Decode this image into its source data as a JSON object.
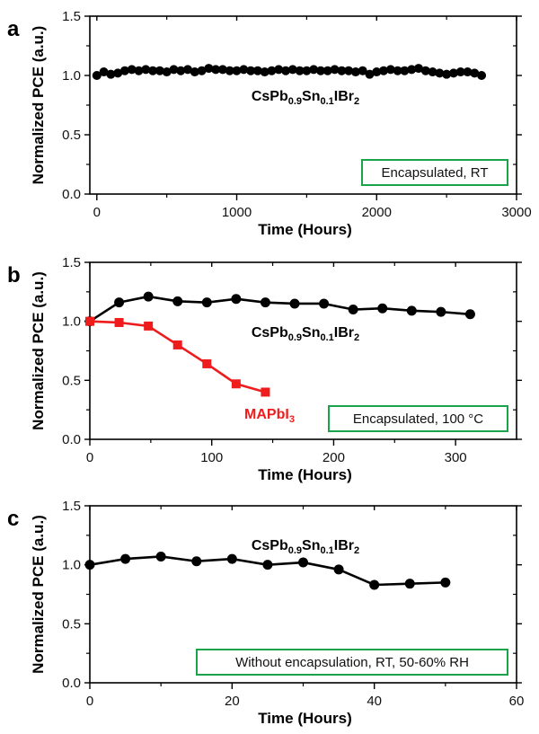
{
  "colors": {
    "black_series": "#000000",
    "red_series": "#ee1c1c",
    "legend_box": "#1aa34a"
  },
  "chart_data": [
    {
      "panel": "a",
      "type": "line",
      "xlabel": "Time (Hours)",
      "ylabel": "Normalized PCE (a.u.)",
      "xlim": [
        -50,
        3000
      ],
      "ylim": [
        0.0,
        1.5
      ],
      "xticks": [
        0,
        1000,
        2000,
        3000
      ],
      "xtick_labels": [
        "0",
        "1000",
        "2000",
        "3000"
      ],
      "x_minor_ticks": [
        500,
        1500,
        2500
      ],
      "yticks": [
        0.0,
        0.5,
        1.0,
        1.5
      ],
      "ytick_labels": [
        "0.0",
        "0.5",
        "1.0",
        "1.5"
      ],
      "y_minor_ticks": [
        0.25,
        0.75,
        1.25
      ],
      "legend_box": "Encapsulated, RT",
      "legend_placement": "bottom-right",
      "series": [
        {
          "name": "CsPb0.9Sn0.1IBr2",
          "label_parts": [
            {
              "t": "CsPb",
              "sub": false
            },
            {
              "t": "0.9",
              "sub": true
            },
            {
              "t": "Sn",
              "sub": false
            },
            {
              "t": "0.1",
              "sub": true
            },
            {
              "t": "IBr",
              "sub": false
            },
            {
              "t": "2",
              "sub": true
            }
          ],
          "color": "#000000",
          "marker": "circle",
          "x": [
            0,
            50,
            100,
            150,
            200,
            250,
            300,
            350,
            400,
            450,
            500,
            550,
            600,
            650,
            700,
            750,
            800,
            850,
            900,
            950,
            1000,
            1050,
            1100,
            1150,
            1200,
            1250,
            1300,
            1350,
            1400,
            1450,
            1500,
            1550,
            1600,
            1650,
            1700,
            1750,
            1800,
            1850,
            1900,
            1950,
            2000,
            2050,
            2100,
            2150,
            2200,
            2250,
            2300,
            2350,
            2400,
            2450,
            2500,
            2550,
            2600,
            2650,
            2700,
            2750
          ],
          "y": [
            1.0,
            1.03,
            1.01,
            1.02,
            1.04,
            1.05,
            1.04,
            1.05,
            1.04,
            1.04,
            1.03,
            1.05,
            1.04,
            1.05,
            1.03,
            1.04,
            1.06,
            1.05,
            1.05,
            1.04,
            1.04,
            1.05,
            1.04,
            1.04,
            1.03,
            1.04,
            1.05,
            1.04,
            1.05,
            1.04,
            1.04,
            1.05,
            1.04,
            1.04,
            1.05,
            1.04,
            1.04,
            1.03,
            1.04,
            1.01,
            1.03,
            1.04,
            1.05,
            1.04,
            1.04,
            1.05,
            1.06,
            1.04,
            1.03,
            1.02,
            1.01,
            1.02,
            1.03,
            1.03,
            1.02,
            1.0
          ]
        }
      ]
    },
    {
      "panel": "b",
      "type": "line",
      "xlabel": "Time (Hours)",
      "ylabel": "Normalized PCE (a.u.)",
      "xlim": [
        0,
        350
      ],
      "ylim": [
        0.0,
        1.5
      ],
      "xticks": [
        0,
        100,
        200,
        300
      ],
      "xtick_labels": [
        "0",
        "100",
        "200",
        "300"
      ],
      "x_minor_ticks": [
        50,
        150,
        250
      ],
      "yticks": [
        0.0,
        0.5,
        1.0,
        1.5
      ],
      "ytick_labels": [
        "0.0",
        "0.5",
        "1.0",
        "1.5"
      ],
      "y_minor_ticks": [
        0.25,
        0.75,
        1.25
      ],
      "legend_box": "Encapsulated, 100 °C",
      "legend_placement": "bottom-right",
      "series": [
        {
          "name": "CsPb0.9Sn0.1IBr2",
          "label_parts": [
            {
              "t": "CsPb",
              "sub": false
            },
            {
              "t": "0.9",
              "sub": true
            },
            {
              "t": "Sn",
              "sub": false
            },
            {
              "t": "0.1",
              "sub": true
            },
            {
              "t": "IBr",
              "sub": false
            },
            {
              "t": "2",
              "sub": true
            }
          ],
          "color": "#000000",
          "marker": "circle",
          "x": [
            0,
            24,
            48,
            72,
            96,
            120,
            144,
            168,
            192,
            216,
            240,
            264,
            288,
            312
          ],
          "y": [
            1.0,
            1.16,
            1.21,
            1.17,
            1.16,
            1.19,
            1.16,
            1.15,
            1.15,
            1.1,
            1.11,
            1.09,
            1.08,
            1.06
          ]
        },
        {
          "name": "MAPbI3",
          "label_parts": [
            {
              "t": "MAPbI",
              "sub": false
            },
            {
              "t": "3",
              "sub": true
            }
          ],
          "color": "#ee1c1c",
          "marker": "square",
          "x": [
            0,
            24,
            48,
            72,
            96,
            120,
            144
          ],
          "y": [
            1.0,
            0.99,
            0.96,
            0.8,
            0.64,
            0.47,
            0.4
          ]
        }
      ]
    },
    {
      "panel": "c",
      "type": "line",
      "xlabel": "Time (Hours)",
      "ylabel": "Normalized PCE (a.u.)",
      "xlim": [
        0,
        60
      ],
      "ylim": [
        0.0,
        1.5
      ],
      "xticks": [
        0,
        20,
        40,
        60
      ],
      "xtick_labels": [
        "0",
        "20",
        "40",
        "60"
      ],
      "x_minor_ticks": [
        10,
        30,
        50
      ],
      "yticks": [
        0.0,
        0.5,
        1.0,
        1.5
      ],
      "ytick_labels": [
        "0.0",
        "0.5",
        "1.0",
        "1.5"
      ],
      "y_minor_ticks": [
        0.25,
        0.75,
        1.25
      ],
      "legend_box": "Without encapsulation, RT, 50-60% RH",
      "legend_placement": "bottom-right",
      "series": [
        {
          "name": "CsPb0.9Sn0.1IBr2",
          "label_parts": [
            {
              "t": "CsPb",
              "sub": false
            },
            {
              "t": "0.9",
              "sub": true
            },
            {
              "t": "Sn",
              "sub": false
            },
            {
              "t": "0.1",
              "sub": true
            },
            {
              "t": "IBr",
              "sub": false
            },
            {
              "t": "2",
              "sub": true
            }
          ],
          "color": "#000000",
          "marker": "circle",
          "x": [
            0,
            5,
            10,
            15,
            20,
            25,
            30,
            35,
            40,
            45,
            50
          ],
          "y": [
            1.0,
            1.05,
            1.07,
            1.03,
            1.05,
            1.0,
            1.02,
            0.96,
            0.83,
            0.84,
            0.85
          ]
        }
      ]
    }
  ]
}
